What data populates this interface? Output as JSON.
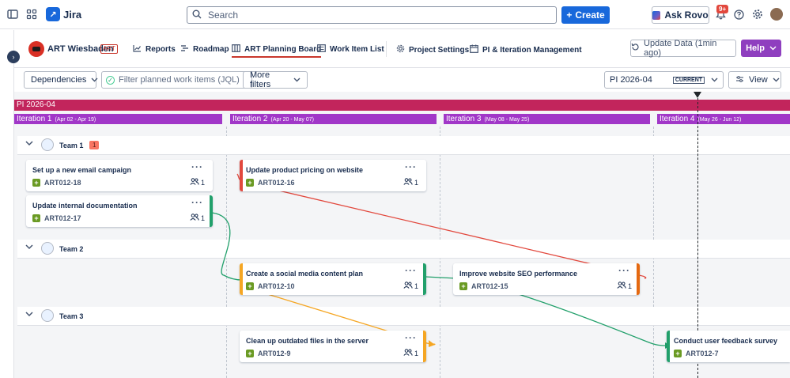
{
  "topnav": {
    "app_name": "Jira",
    "search_placeholder": "Search",
    "create_label": "Create",
    "ask_rovo_label": "Ask Rovo",
    "notifications_badge": "9+"
  },
  "project": {
    "name": "ART Wiesbaden",
    "badge": "ART",
    "tabs": [
      {
        "label": "Reports",
        "icon": "chart-icon"
      },
      {
        "label": "Roadmap",
        "icon": "roadmap-icon"
      },
      {
        "label": "ART Planning Board",
        "icon": "board-icon"
      },
      {
        "label": "Work Item List",
        "icon": "list-icon"
      },
      {
        "label": "Project Settings",
        "icon": "gear-icon"
      },
      {
        "label": "PI & Iteration Management",
        "icon": "calendar-icon"
      }
    ],
    "update_label": "Update Data (1min ago)",
    "help_label": "Help"
  },
  "filters": {
    "dependencies_label": "Dependencies",
    "jql_placeholder": "Filter planned work items (JQL)",
    "more_filters_label": "More filters",
    "pi_value": "PI 2026-04",
    "pi_tag": "CURRENT",
    "view_label": "View"
  },
  "timeline": {
    "pi_label": "PI 2026-04",
    "iterations": [
      {
        "label": "Iteration 1",
        "dates": "(Apr 02 - Apr 19)"
      },
      {
        "label": "Iteration 2",
        "dates": "(Apr 20 - May 07)"
      },
      {
        "label": "Iteration 3",
        "dates": "(May 08 - May 25)"
      },
      {
        "label": "Iteration 4",
        "dates": "(May 26 - Jun 12)"
      }
    ]
  },
  "teams": [
    {
      "name": "Team 1",
      "count": "1"
    },
    {
      "name": "Team 2",
      "count": ""
    },
    {
      "name": "Team 3",
      "count": ""
    }
  ],
  "cards": [
    {
      "title": "Set up a new email campaign",
      "key": "ART012-18",
      "people": "1",
      "stripe": ""
    },
    {
      "title": "Update internal documentation",
      "key": "ART012-17",
      "people": "1",
      "stripe": "#22a06b"
    },
    {
      "title": "Update product pricing on website",
      "key": "ART012-16",
      "people": "1",
      "stripe": "#e2483d"
    },
    {
      "title": "Create a social media content plan",
      "key": "ART012-10",
      "people": "1",
      "stripe": "#f5a623"
    },
    {
      "title": "Improve website SEO performance",
      "key": "ART012-15",
      "people": "1",
      "stripe": "#e56910"
    },
    {
      "title": "Clean up outdated files in the server",
      "key": "ART012-9",
      "people": "1",
      "stripe": "#f5a623"
    },
    {
      "title": "Conduct user feedback survey",
      "key": "ART012-7",
      "people": "1",
      "stripe": "#22a06b"
    }
  ],
  "colors": {
    "pi_bar": "#c2255c",
    "iteration_bar": "#a137c8",
    "primary": "#1868db",
    "help": "#8f3fbf",
    "dep_red": "#e2483d",
    "dep_green": "#22a06b",
    "dep_orange": "#f5a623"
  }
}
